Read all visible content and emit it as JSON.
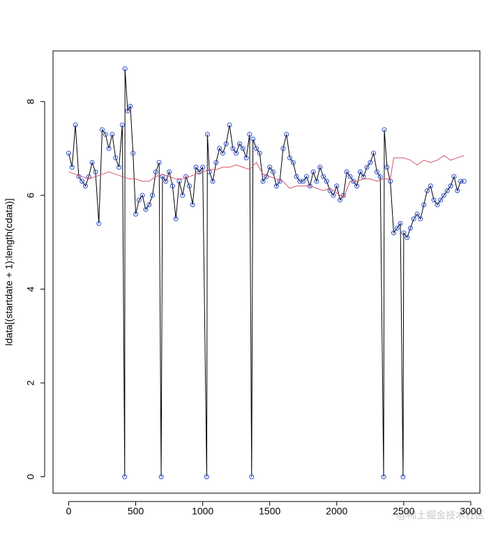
{
  "chart_data": {
    "type": "line",
    "y_label": "ldata[(startdate + 1):length(cdata)]",
    "watermark": "@稀土掘金技术社区",
    "xlim": [
      -117,
      3068
    ],
    "ylim": [
      -0.35,
      9.08
    ],
    "xticks": [
      0,
      500,
      1000,
      1500,
      2000,
      2500,
      3000
    ],
    "yticks": [
      0,
      2,
      4,
      6,
      8
    ],
    "series": [
      {
        "color": "#000000",
        "point_color": "#2a4fd6",
        "points": true,
        "x": [
          0,
          25,
          50,
          75,
          100,
          125,
          150,
          175,
          200,
          225,
          250,
          275,
          300,
          325,
          350,
          375,
          400,
          418,
          420,
          440,
          460,
          480,
          500,
          525,
          550,
          575,
          600,
          625,
          650,
          675,
          690,
          700,
          725,
          750,
          775,
          800,
          825,
          850,
          875,
          900,
          925,
          950,
          975,
          1000,
          1030,
          1035,
          1050,
          1075,
          1100,
          1125,
          1150,
          1175,
          1200,
          1225,
          1250,
          1275,
          1300,
          1325,
          1350,
          1365,
          1375,
          1400,
          1425,
          1450,
          1475,
          1500,
          1525,
          1550,
          1575,
          1600,
          1625,
          1650,
          1675,
          1700,
          1725,
          1750,
          1775,
          1800,
          1825,
          1850,
          1875,
          1900,
          1925,
          1950,
          1975,
          2000,
          2025,
          2050,
          2075,
          2100,
          2125,
          2150,
          2175,
          2200,
          2225,
          2250,
          2275,
          2300,
          2325,
          2350,
          2355,
          2375,
          2400,
          2425,
          2450,
          2475,
          2495,
          2500,
          2525,
          2550,
          2575,
          2600,
          2625,
          2650,
          2675,
          2700,
          2725,
          2750,
          2775,
          2800,
          2825,
          2850,
          2875,
          2900,
          2925,
          2950
        ],
        "values": [
          6.9,
          6.6,
          7.5,
          6.4,
          6.3,
          6.2,
          6.4,
          6.7,
          6.5,
          5.4,
          7.4,
          7.3,
          7.0,
          7.3,
          6.8,
          6.6,
          7.5,
          0,
          8.7,
          7.8,
          7.9,
          6.9,
          5.6,
          5.9,
          6.0,
          5.7,
          5.8,
          6.0,
          6.5,
          6.7,
          0,
          6.4,
          6.3,
          6.5,
          6.2,
          5.5,
          6.3,
          6.0,
          6.4,
          6.2,
          5.8,
          6.6,
          6.5,
          6.6,
          0,
          7.3,
          6.5,
          6.3,
          6.7,
          7.0,
          6.9,
          7.1,
          7.5,
          7.0,
          6.9,
          7.1,
          7.0,
          6.8,
          7.3,
          0,
          7.2,
          7.0,
          6.9,
          6.3,
          6.4,
          6.6,
          6.5,
          6.2,
          6.3,
          7.0,
          7.3,
          6.8,
          6.7,
          6.4,
          6.3,
          6.3,
          6.4,
          6.2,
          6.5,
          6.3,
          6.6,
          6.4,
          6.3,
          6.1,
          6.0,
          6.2,
          5.9,
          6.0,
          6.5,
          6.4,
          6.3,
          6.2,
          6.5,
          6.4,
          6.6,
          6.7,
          6.9,
          6.5,
          6.4,
          0,
          7.4,
          6.6,
          6.3,
          5.2,
          5.3,
          5.4,
          0,
          5.2,
          5.1,
          5.3,
          5.5,
          5.6,
          5.5,
          5.8,
          6.1,
          6.2,
          5.9,
          5.8,
          5.9,
          6.0,
          6.1,
          6.2,
          6.4,
          6.1,
          6.3,
          6.3
        ]
      },
      {
        "color": "#d9536b",
        "points": false,
        "x": [
          0,
          50,
          100,
          150,
          200,
          250,
          300,
          350,
          400,
          450,
          500,
          550,
          600,
          650,
          700,
          750,
          800,
          850,
          900,
          950,
          1000,
          1050,
          1100,
          1150,
          1200,
          1250,
          1300,
          1350,
          1400,
          1450,
          1500,
          1550,
          1600,
          1650,
          1700,
          1750,
          1800,
          1850,
          1900,
          1950,
          2000,
          2050,
          2100,
          2150,
          2200,
          2250,
          2300,
          2350,
          2400,
          2425,
          2450,
          2500,
          2550,
          2600,
          2650,
          2700,
          2750,
          2800,
          2850,
          2900,
          2950
        ],
        "values": [
          6.5,
          6.45,
          6.4,
          6.35,
          6.4,
          6.45,
          6.5,
          6.45,
          6.4,
          6.35,
          6.35,
          6.3,
          6.3,
          6.4,
          6.45,
          6.4,
          6.35,
          6.35,
          6.4,
          6.45,
          6.5,
          6.55,
          6.55,
          6.6,
          6.6,
          6.65,
          6.6,
          6.55,
          6.7,
          6.45,
          6.4,
          6.35,
          6.3,
          6.15,
          6.2,
          6.2,
          6.2,
          6.15,
          6.1,
          6.15,
          6.05,
          5.95,
          6.3,
          6.3,
          6.35,
          6.35,
          6.3,
          6.35,
          6.35,
          6.8,
          6.8,
          6.8,
          6.75,
          6.65,
          6.75,
          6.7,
          6.75,
          6.85,
          6.75,
          6.8,
          6.85
        ]
      }
    ]
  }
}
